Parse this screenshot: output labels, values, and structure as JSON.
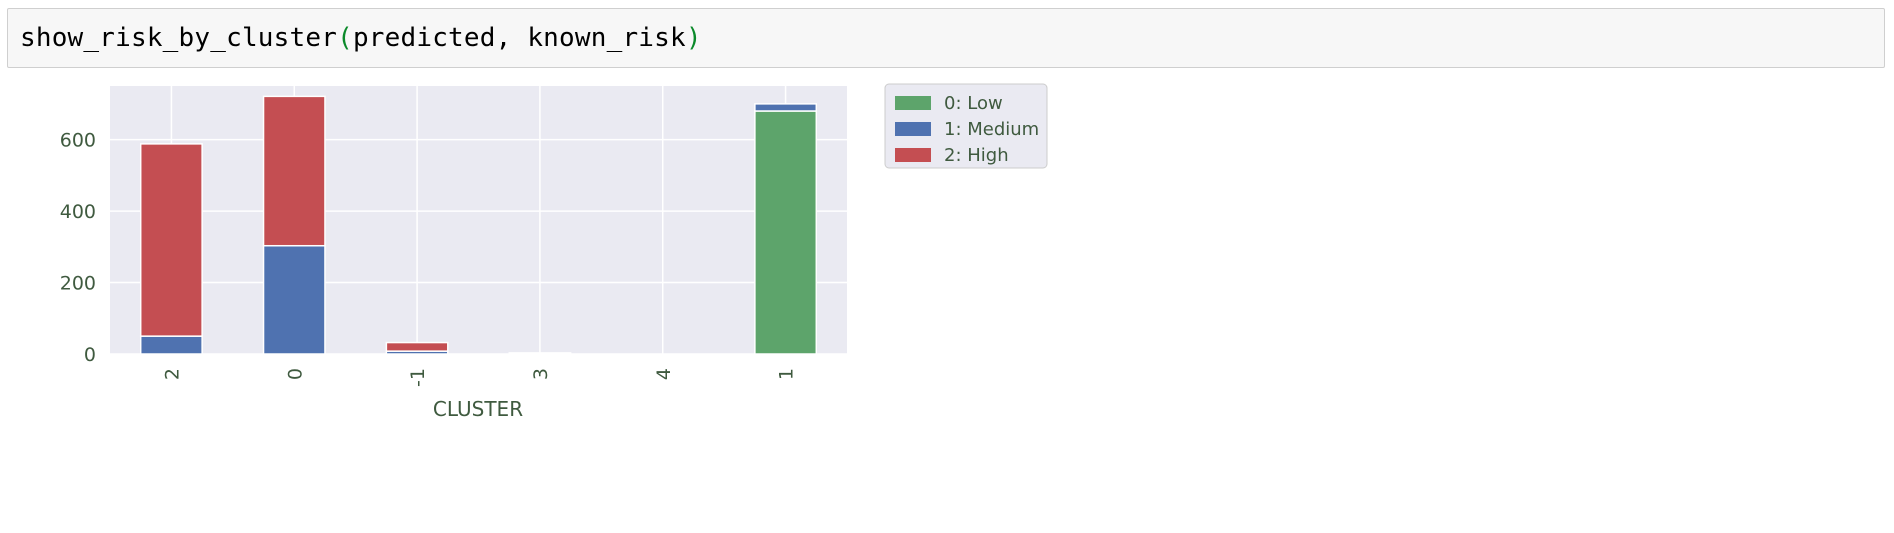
{
  "code_cell": {
    "func": "show_risk_by_cluster",
    "open_paren": "(",
    "args": "predicted, known_risk",
    "close_paren": ")"
  },
  "chart_data": {
    "type": "bar",
    "stacked": true,
    "categories": [
      "2",
      "0",
      "-1",
      "3",
      "4",
      "1"
    ],
    "series": [
      {
        "name": "0: Low",
        "color": "#5da46b",
        "values": [
          0,
          0,
          0,
          0,
          0,
          680
        ]
      },
      {
        "name": "1: Medium",
        "color": "#4f72b0",
        "values": [
          50,
          303,
          8,
          1,
          0,
          20
        ]
      },
      {
        "name": "2: High",
        "color": "#c44e52",
        "values": [
          538,
          418,
          24,
          2,
          0,
          0
        ]
      }
    ],
    "xlabel": "CLUSTER",
    "ylabel": "",
    "ylim": [
      0,
      750
    ],
    "yticks": [
      0,
      200,
      400,
      600
    ],
    "grid": true,
    "legend": "outside-top-right"
  }
}
